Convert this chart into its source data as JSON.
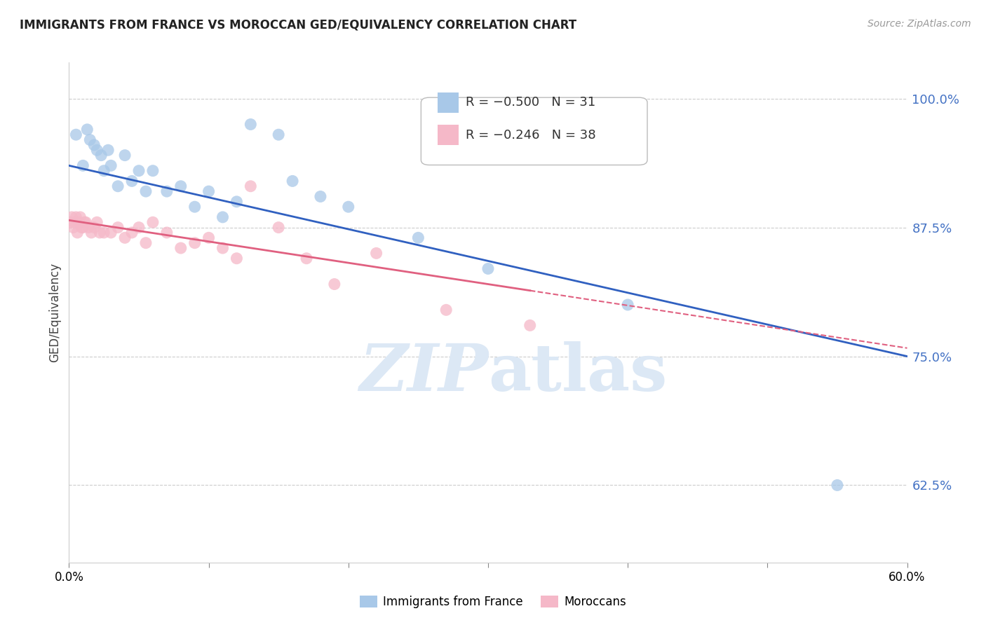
{
  "title": "IMMIGRANTS FROM FRANCE VS MOROCCAN GED/EQUIVALENCY CORRELATION CHART",
  "source": "Source: ZipAtlas.com",
  "ylabel": "GED/Equivalency",
  "right_yticks": [
    100.0,
    87.5,
    75.0,
    62.5
  ],
  "right_ytick_labels": [
    "100.0%",
    "87.5%",
    "75.0%",
    "62.5%"
  ],
  "legend_blue_r": "R = −0.500",
  "legend_blue_n": "N = 31",
  "legend_pink_r": "R = −0.246",
  "legend_pink_n": "N = 38",
  "blue_scatter_x": [
    0.5,
    1.0,
    1.3,
    1.5,
    1.8,
    2.0,
    2.3,
    2.5,
    2.8,
    3.0,
    3.5,
    4.0,
    4.5,
    5.0,
    5.5,
    6.0,
    7.0,
    8.0,
    9.0,
    10.0,
    11.0,
    12.0,
    13.0,
    15.0,
    16.0,
    18.0,
    20.0,
    25.0,
    30.0,
    40.0,
    55.0
  ],
  "blue_scatter_y": [
    96.5,
    93.5,
    97.0,
    96.0,
    95.5,
    95.0,
    94.5,
    93.0,
    95.0,
    93.5,
    91.5,
    94.5,
    92.0,
    93.0,
    91.0,
    93.0,
    91.0,
    91.5,
    89.5,
    91.0,
    88.5,
    90.0,
    97.5,
    96.5,
    92.0,
    90.5,
    89.5,
    86.5,
    83.5,
    80.0,
    62.5
  ],
  "pink_scatter_x": [
    0.1,
    0.2,
    0.3,
    0.4,
    0.5,
    0.6,
    0.7,
    0.8,
    0.9,
    1.0,
    1.1,
    1.2,
    1.4,
    1.6,
    1.8,
    2.0,
    2.2,
    2.5,
    3.0,
    3.5,
    4.0,
    4.5,
    5.0,
    5.5,
    6.0,
    7.0,
    8.0,
    9.0,
    10.0,
    11.0,
    12.0,
    13.0,
    15.0,
    17.0,
    19.0,
    22.0,
    27.0,
    33.0
  ],
  "pink_scatter_y": [
    88.0,
    88.5,
    87.5,
    88.0,
    88.5,
    87.0,
    88.0,
    88.5,
    87.5,
    87.5,
    88.0,
    88.0,
    87.5,
    87.0,
    87.5,
    88.0,
    87.0,
    87.0,
    87.0,
    87.5,
    86.5,
    87.0,
    87.5,
    86.0,
    88.0,
    87.0,
    85.5,
    86.0,
    86.5,
    85.5,
    84.5,
    91.5,
    87.5,
    84.5,
    82.0,
    85.0,
    79.5,
    78.0
  ],
  "blue_line_x": [
    0.0,
    60.0
  ],
  "blue_line_y": [
    93.5,
    75.0
  ],
  "pink_line_x": [
    0.0,
    60.0
  ],
  "pink_line_y": [
    88.2,
    75.8
  ],
  "pink_solid_xend": 33.0,
  "blue_color": "#a8c8e8",
  "pink_color": "#f5b8c8",
  "blue_line_color": "#3060c0",
  "pink_line_color": "#e06080",
  "right_axis_color": "#4472c4",
  "watermark_color": "#dce8f5",
  "background_color": "#ffffff",
  "grid_color": "#cccccc",
  "xmin": 0.0,
  "xmax": 60.0,
  "ymin": 55.0,
  "ymax": 103.5
}
